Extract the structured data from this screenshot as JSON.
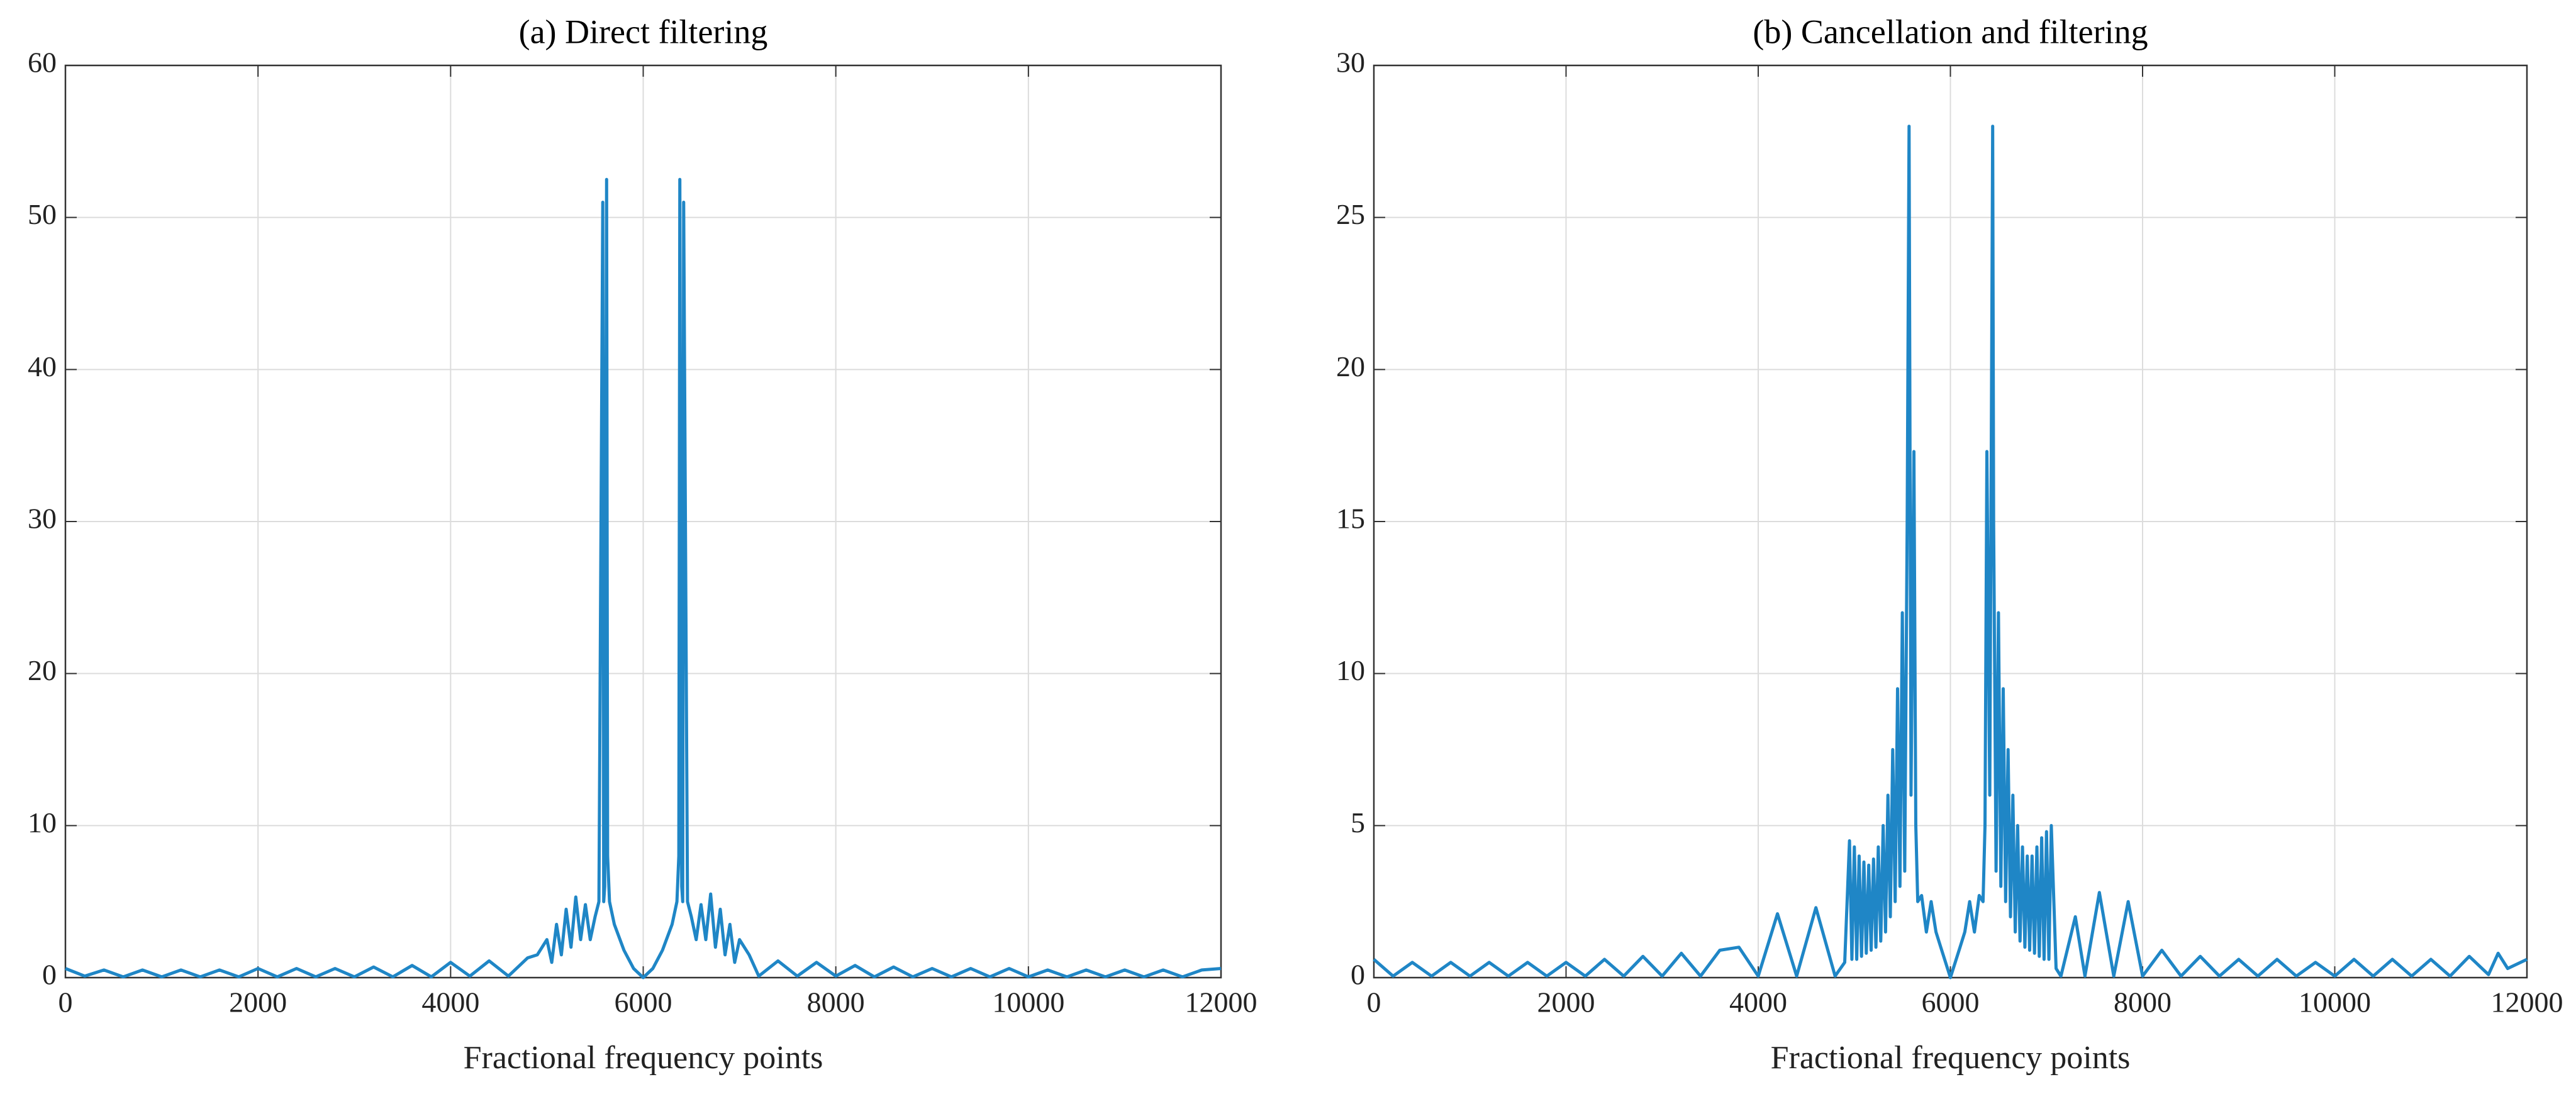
{
  "chart_data": [
    {
      "type": "line",
      "title": "(a) Direct filtering",
      "xlabel": "Fractional frequency points",
      "xlim": [
        0,
        12000
      ],
      "xticks": [
        0,
        2000,
        4000,
        6000,
        8000,
        10000,
        12000
      ],
      "ylim": [
        0,
        60
      ],
      "yticks": [
        0,
        10,
        20,
        30,
        40,
        50,
        60
      ],
      "grid": true,
      "x": [
        0,
        200,
        400,
        600,
        800,
        1000,
        1200,
        1400,
        1600,
        1800,
        2000,
        2200,
        2400,
        2600,
        2800,
        3000,
        3200,
        3400,
        3600,
        3800,
        4000,
        4200,
        4400,
        4600,
        4800,
        4900,
        5000,
        5050,
        5100,
        5150,
        5200,
        5250,
        5300,
        5350,
        5400,
        5450,
        5500,
        5540,
        5580,
        5590,
        5600,
        5620,
        5630,
        5650,
        5700,
        5800,
        5900,
        6000,
        6100,
        6200,
        6300,
        6350,
        6370,
        6380,
        6400,
        6410,
        6420,
        6460,
        6500,
        6550,
        6600,
        6650,
        6700,
        6750,
        6800,
        6850,
        6900,
        6950,
        7000,
        7100,
        7200,
        7400,
        7600,
        7800,
        8000,
        8200,
        8400,
        8600,
        8800,
        9000,
        9200,
        9400,
        9600,
        9800,
        10000,
        10200,
        10400,
        10600,
        10800,
        11000,
        11200,
        11400,
        11600,
        11800,
        12000
      ],
      "series": [
        {
          "color": "#1f86c6",
          "values": [
            0.6,
            0.1,
            0.5,
            0.05,
            0.5,
            0.05,
            0.5,
            0.05,
            0.5,
            0.05,
            0.6,
            0.05,
            0.6,
            0.05,
            0.6,
            0.05,
            0.7,
            0.05,
            0.8,
            0.05,
            1.0,
            0.1,
            1.1,
            0.1,
            1.3,
            1.5,
            2.5,
            1.0,
            3.5,
            1.5,
            4.5,
            2.0,
            5.3,
            2.5,
            4.8,
            2.5,
            4.0,
            5,
            51,
            5,
            6,
            52.5,
            8,
            5,
            3.5,
            1.8,
            0.6,
            0,
            0.6,
            1.8,
            3.5,
            5,
            8,
            52.5,
            6,
            5,
            51,
            5,
            4.0,
            2.5,
            4.8,
            2.5,
            5.5,
            2.0,
            4.5,
            1.5,
            3.5,
            1.0,
            2.5,
            1.5,
            0.1,
            1.1,
            0.1,
            1.0,
            0.1,
            0.8,
            0.05,
            0.7,
            0.05,
            0.6,
            0.05,
            0.6,
            0.05,
            0.6,
            0.05,
            0.5,
            0.05,
            0.5,
            0.05,
            0.5,
            0.05,
            0.5,
            0.05,
            0.5,
            0.6
          ]
        }
      ]
    },
    {
      "type": "line",
      "title": "(b) Cancellation and filtering",
      "xlabel": "Fractional frequency points",
      "xlim": [
        0,
        12000
      ],
      "xticks": [
        0,
        2000,
        4000,
        6000,
        8000,
        10000,
        12000
      ],
      "ylim": [
        0,
        30
      ],
      "yticks": [
        0,
        5,
        10,
        15,
        20,
        25,
        30
      ],
      "grid": true,
      "x": [
        0,
        200,
        400,
        600,
        800,
        1000,
        1200,
        1400,
        1600,
        1800,
        2000,
        2200,
        2400,
        2600,
        2800,
        3000,
        3200,
        3400,
        3600,
        3800,
        4000,
        4200,
        4400,
        4600,
        4800,
        4900,
        4950,
        4975,
        5000,
        5025,
        5050,
        5075,
        5100,
        5125,
        5150,
        5175,
        5200,
        5225,
        5250,
        5275,
        5300,
        5325,
        5350,
        5375,
        5400,
        5425,
        5450,
        5475,
        5500,
        5525,
        5550,
        5570,
        5590,
        5620,
        5640,
        5660,
        5700,
        5750,
        5800,
        5850,
        5900,
        6000,
        6100,
        6150,
        6200,
        6250,
        6300,
        6340,
        6360,
        6380,
        6410,
        6440,
        6450,
        6475,
        6500,
        6525,
        6550,
        6575,
        6600,
        6625,
        6650,
        6675,
        6700,
        6725,
        6750,
        6775,
        6800,
        6825,
        6850,
        6875,
        6900,
        6925,
        6950,
        6975,
        7000,
        7025,
        7050,
        7100,
        7150,
        7300,
        7400,
        7550,
        7700,
        7850,
        8000,
        8200,
        8400,
        8600,
        8800,
        9000,
        9200,
        9400,
        9600,
        9800,
        10000,
        10200,
        10400,
        10600,
        10800,
        11000,
        11200,
        11400,
        11600,
        11700,
        11800,
        12000
      ],
      "series": [
        {
          "color": "#1f86c6",
          "values": [
            0.6,
            0.05,
            0.5,
            0.05,
            0.5,
            0.05,
            0.5,
            0.05,
            0.5,
            0.05,
            0.5,
            0.05,
            0.6,
            0.05,
            0.7,
            0.05,
            0.8,
            0.05,
            0.9,
            1.0,
            0.05,
            2.1,
            0.05,
            2.3,
            0.05,
            0.5,
            4.5,
            0.6,
            4.3,
            0.6,
            4.0,
            0.7,
            3.8,
            0.8,
            3.7,
            0.9,
            3.9,
            1.0,
            4.3,
            1.2,
            5.0,
            1.5,
            6.0,
            2.0,
            7.5,
            2.5,
            9.5,
            3.0,
            12,
            3.5,
            15,
            28,
            6,
            17.3,
            5,
            2.5,
            2.7,
            1.5,
            2.5,
            1.5,
            1.0,
            0,
            1.0,
            1.5,
            2.5,
            1.5,
            2.7,
            2.5,
            5,
            17.3,
            6,
            28,
            15,
            3.5,
            12,
            3.0,
            9.5,
            2.5,
            7.5,
            2.0,
            6.0,
            1.5,
            5.0,
            1.2,
            4.3,
            1.0,
            4.0,
            0.9,
            4.0,
            0.8,
            4.3,
            0.7,
            4.6,
            0.6,
            4.8,
            0.6,
            5.0,
            0.3,
            0.05,
            2.0,
            0.05,
            2.8,
            0.05,
            2.5,
            0.05,
            0.9,
            0.05,
            0.7,
            0.05,
            0.6,
            0.05,
            0.6,
            0.05,
            0.5,
            0.05,
            0.6,
            0.05,
            0.6,
            0.05,
            0.6,
            0.05,
            0.7,
            0.1,
            0.8,
            0.3,
            0.6
          ]
        }
      ]
    }
  ]
}
